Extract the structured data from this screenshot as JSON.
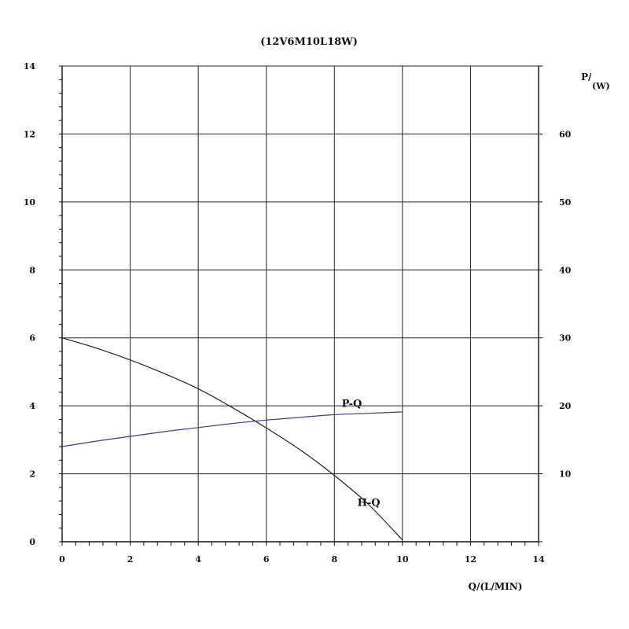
{
  "chart_data": {
    "type": "line",
    "title": "(12V6M10L18W)",
    "xlabel": "Q/(L/MIN)",
    "ylabel_left": "",
    "ylabel_right_main": "P/",
    "ylabel_right_unit": "(W)",
    "xlim": [
      0,
      14
    ],
    "ylim_left": [
      0,
      14
    ],
    "ylim_right": [
      0,
      70
    ],
    "x_ticks": [
      "0",
      "2",
      "4",
      "6",
      "8",
      "10",
      "12",
      "14"
    ],
    "y_left_ticks": [
      "0",
      "2",
      "4",
      "6",
      "8",
      "10",
      "12",
      "14"
    ],
    "y_right_ticks": [
      "10",
      "20",
      "30",
      "40",
      "50",
      "60"
    ],
    "grid": true,
    "series": [
      {
        "name": "H-Q",
        "axis": "left",
        "color": "#222222",
        "x": [
          0,
          1,
          2,
          3,
          4,
          5,
          6,
          7,
          8,
          9,
          10
        ],
        "y": [
          6.0,
          5.7,
          5.35,
          4.95,
          4.5,
          3.95,
          3.35,
          2.7,
          1.95,
          1.1,
          0.05
        ]
      },
      {
        "name": "P-Q",
        "axis": "right",
        "color": "#3a3a8c",
        "x": [
          0,
          1,
          2,
          3,
          4,
          5,
          6,
          7,
          8,
          9,
          10
        ],
        "y": [
          14.0,
          14.8,
          15.5,
          16.2,
          16.8,
          17.4,
          17.9,
          18.3,
          18.7,
          18.9,
          19.1
        ]
      }
    ]
  }
}
